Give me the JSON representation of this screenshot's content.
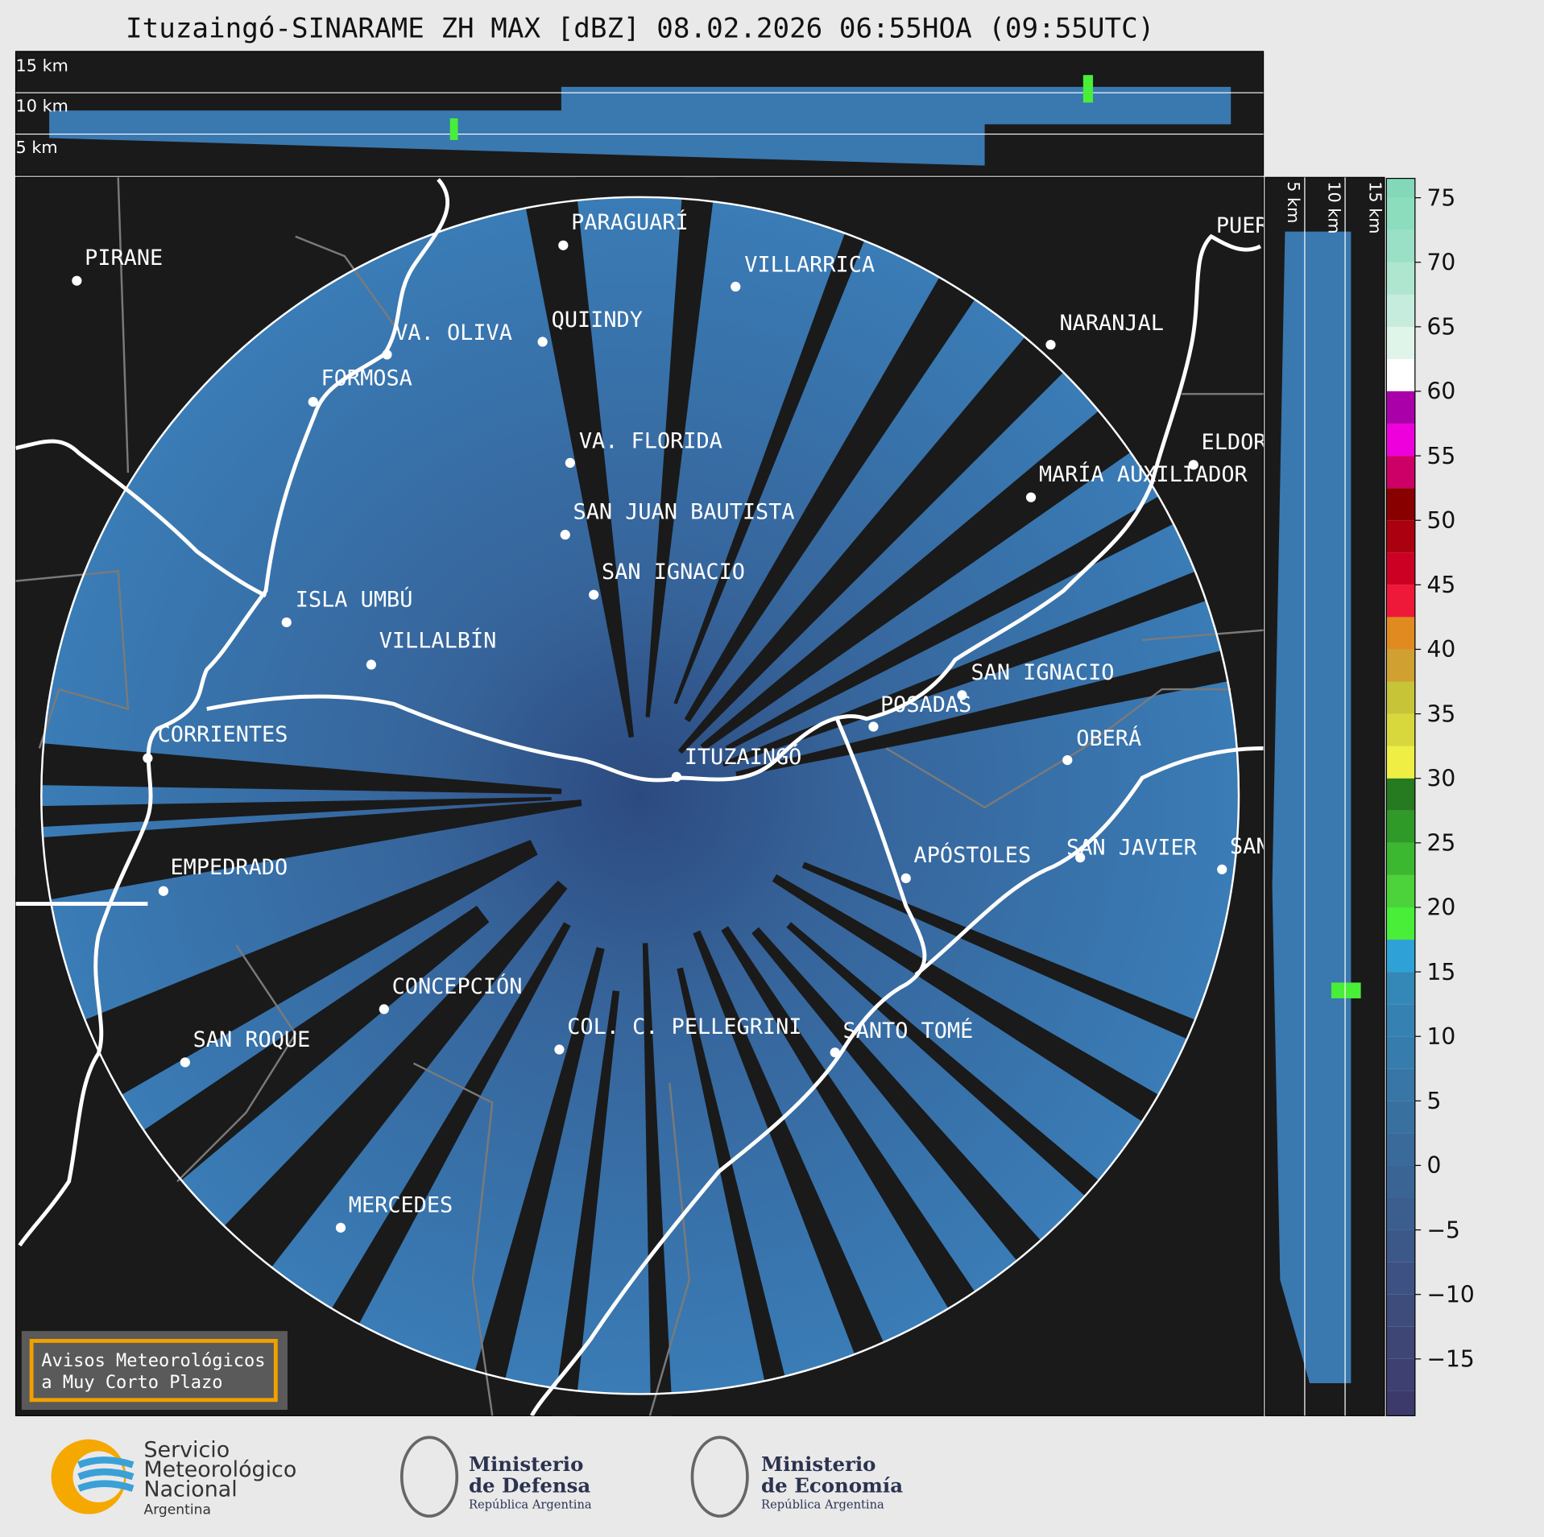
{
  "title": "Ituzaingó-SINARAME ZH MAX [dBZ] 08.02.2026 06:55HOA (09:55UTC)",
  "top_panel_labels": [
    "15 km",
    "10 km",
    "5 km"
  ],
  "side_panel_labels": [
    "5 km",
    "10 km",
    "15 km"
  ],
  "cities": [
    "PARAGUARÍ",
    "VILLARRICA",
    "PIRANE",
    "QUIINDY",
    "VA. OLIVA",
    "NARANJAL",
    "FORMOSA",
    "VA. FLORIDA",
    "ELDOR",
    "MARÍA AUXILIADOR",
    "SAN JUAN BAUTISTA",
    "SAN IGNACIO",
    "ISLA UMBÚ",
    "VILLALBÍN",
    "SAN IGNACIO",
    "POSADAS",
    "CORRIENTES",
    "ITUZAINGÓ",
    "OBERÁ",
    "SAN JAVIER",
    "APÓSTOLES",
    "SAN",
    "EMPEDRADO",
    "CONCEPCIÓN",
    "COL. C. PELLEGRINI",
    "SANTO TOMÉ",
    "SAN ROQUE",
    "MERCEDES",
    "PUER"
  ],
  "notice": [
    "Avisos Meteorológicos",
    "a Muy Corto Plazo"
  ],
  "colorbar": {
    "lim": [
      -19.4,
      76.5
    ],
    "ticks": [
      75,
      70,
      65,
      60,
      55,
      50,
      45,
      40,
      35,
      30,
      25,
      20,
      15,
      10,
      5,
      0,
      {
        "value": -5,
        "label": "−5"
      },
      {
        "value": -10,
        "label": "−10"
      },
      {
        "value": -15,
        "label": "−15"
      }
    ],
    "levels": [
      -20,
      -17.5,
      -15,
      -12.5,
      -10,
      -7.5,
      -5,
      -2.5,
      0,
      2.5,
      5,
      7.5,
      10,
      12.5,
      15,
      17.5,
      20,
      22.5,
      25,
      27.5,
      30,
      32.5,
      35,
      37.5,
      40,
      42.5,
      45,
      47.5,
      50,
      52.5,
      55,
      57.5,
      60,
      62.5,
      65,
      67.5,
      70,
      72.5,
      75,
      77.5
    ],
    "colors": [
      "#3c3a6a",
      "#3d4070",
      "#3e4676",
      "#3e4c7c",
      "#3d5282",
      "#3c5888",
      "#3b5e8e",
      "#3a6494",
      "#396a9a",
      "#3870a0",
      "#3776a6",
      "#367cac",
      "#3582b2",
      "#3488b8",
      "#2ea2d6",
      "#48ee38",
      "#4cd23a",
      "#3cb830",
      "#309a28",
      "#267a20",
      "#eeee44",
      "#d8d83c",
      "#c8c438",
      "#d0a030",
      "#e08a20",
      "#ee1838",
      "#cc0022",
      "#aa0010",
      "#880000",
      "#cc0066",
      "#ee00dd",
      "#aa00aa",
      "#ffffff",
      "#dff5ea",
      "#c6ecdd",
      "#aee6d0",
      "#9ae0c6",
      "#8cdcbe",
      "#82d8b8"
    ]
  },
  "logos": {
    "smn": [
      "Servicio",
      "Meteorológico",
      "Nacional",
      "Argentina"
    ],
    "defensa": [
      "Ministerio",
      "de Defensa",
      "República Argentina"
    ],
    "economia": [
      "Ministerio",
      "de Economía",
      "República Argentina"
    ]
  }
}
